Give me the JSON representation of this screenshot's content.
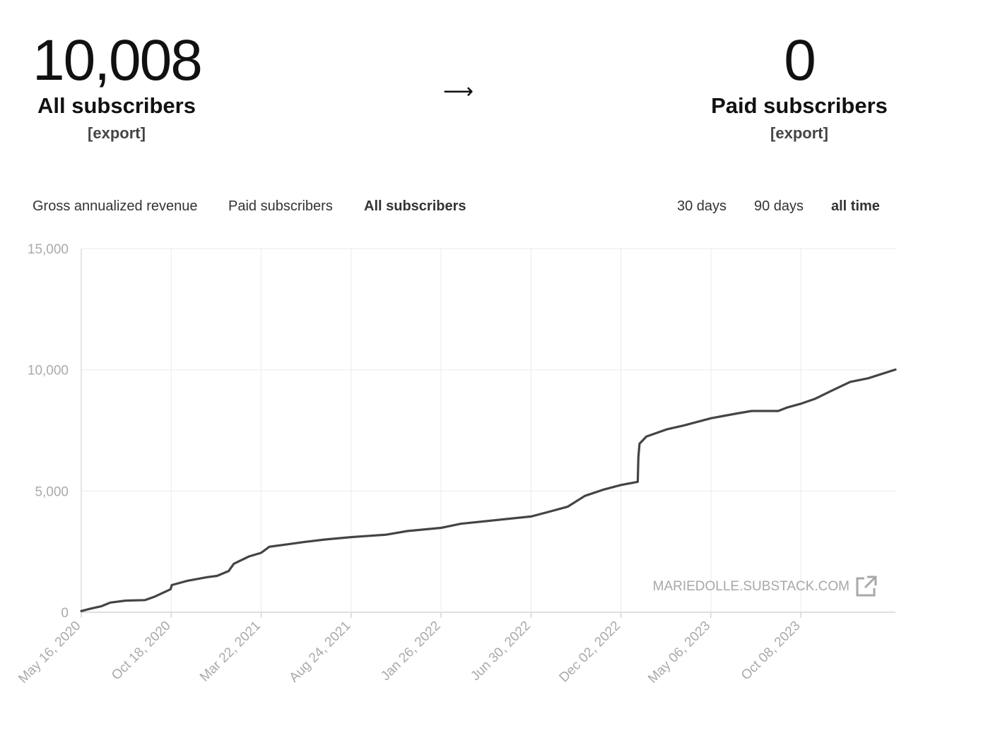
{
  "stats": {
    "left": {
      "value": "10,008",
      "label": "All subscribers",
      "export": "[export]"
    },
    "arrow": "⟶",
    "right": {
      "value": "0",
      "label": "Paid subscribers",
      "export": "[export]"
    }
  },
  "metric_tabs": [
    {
      "label": "Gross annualized revenue",
      "active": false
    },
    {
      "label": "Paid subscribers",
      "active": false
    },
    {
      "label": "All subscribers",
      "active": true
    }
  ],
  "range_tabs": [
    {
      "label": "30 days",
      "active": false
    },
    {
      "label": "90 days",
      "active": false
    },
    {
      "label": "all time",
      "active": true
    }
  ],
  "watermark": "MARIEDOLLE.SUBSTACK.COM",
  "colors": {
    "line": "#444444",
    "grid": "#eeeeee",
    "axis_text": "#aaaaaa",
    "watermark": "#a8a8a8"
  },
  "chart_data": {
    "type": "line",
    "title": "",
    "xlabel": "",
    "ylabel": "",
    "ylim": [
      0,
      15000
    ],
    "y_ticks": [
      0,
      5000,
      10000,
      15000
    ],
    "y_tick_labels": [
      "0",
      "5,000",
      "10,000",
      "15,000"
    ],
    "x_tick_labels": [
      "May 16, 2020",
      "Oct 18, 2020",
      "Mar 22, 2021",
      "Aug 24, 2021",
      "Jan 26, 2022",
      "Jun 30, 2022",
      "Dec 02, 2022",
      "May 06, 2023",
      "Oct 08, 2023"
    ],
    "xlim": [
      "2020-05-16",
      "2024-03-19"
    ],
    "grid": true,
    "series": [
      {
        "values": [
          [
            "2020-05-16",
            50
          ],
          [
            "2020-06-01",
            150
          ],
          [
            "2020-06-20",
            250
          ],
          [
            "2020-07-05",
            400
          ],
          [
            "2020-08-01",
            480
          ],
          [
            "2020-09-03",
            500
          ],
          [
            "2020-09-20",
            650
          ],
          [
            "2020-10-17",
            950
          ],
          [
            "2020-10-19",
            1120
          ],
          [
            "2020-11-15",
            1300
          ],
          [
            "2020-12-20",
            1450
          ],
          [
            "2021-01-05",
            1500
          ],
          [
            "2021-01-25",
            1700
          ],
          [
            "2021-02-03",
            2000
          ],
          [
            "2021-03-01",
            2300
          ],
          [
            "2021-03-22",
            2450
          ],
          [
            "2021-04-05",
            2700
          ],
          [
            "2021-05-05",
            2800
          ],
          [
            "2021-06-05",
            2900
          ],
          [
            "2021-07-10",
            3000
          ],
          [
            "2021-08-24",
            3100
          ],
          [
            "2021-10-24",
            3200
          ],
          [
            "2021-11-29",
            3350
          ],
          [
            "2022-01-26",
            3480
          ],
          [
            "2022-03-01",
            3650
          ],
          [
            "2022-06-30",
            3950
          ],
          [
            "2022-08-01",
            4150
          ],
          [
            "2022-09-01",
            4350
          ],
          [
            "2022-10-01",
            4800
          ],
          [
            "2022-11-01",
            5050
          ],
          [
            "2022-12-02",
            5250
          ],
          [
            "2022-12-31",
            5380
          ],
          [
            "2023-01-01",
            6400
          ],
          [
            "2023-01-03",
            6950
          ],
          [
            "2023-01-15",
            7250
          ],
          [
            "2023-02-20",
            7550
          ],
          [
            "2023-03-20",
            7700
          ],
          [
            "2023-05-06",
            8000
          ],
          [
            "2023-06-20",
            8200
          ],
          [
            "2023-07-15",
            8300
          ],
          [
            "2023-08-30",
            8300
          ],
          [
            "2023-09-15",
            8450
          ],
          [
            "2023-10-08",
            8600
          ],
          [
            "2023-11-01",
            8800
          ],
          [
            "2023-12-01",
            9150
          ],
          [
            "2024-01-01",
            9500
          ],
          [
            "2024-02-01",
            9650
          ],
          [
            "2024-03-19",
            10008
          ]
        ]
      }
    ]
  }
}
